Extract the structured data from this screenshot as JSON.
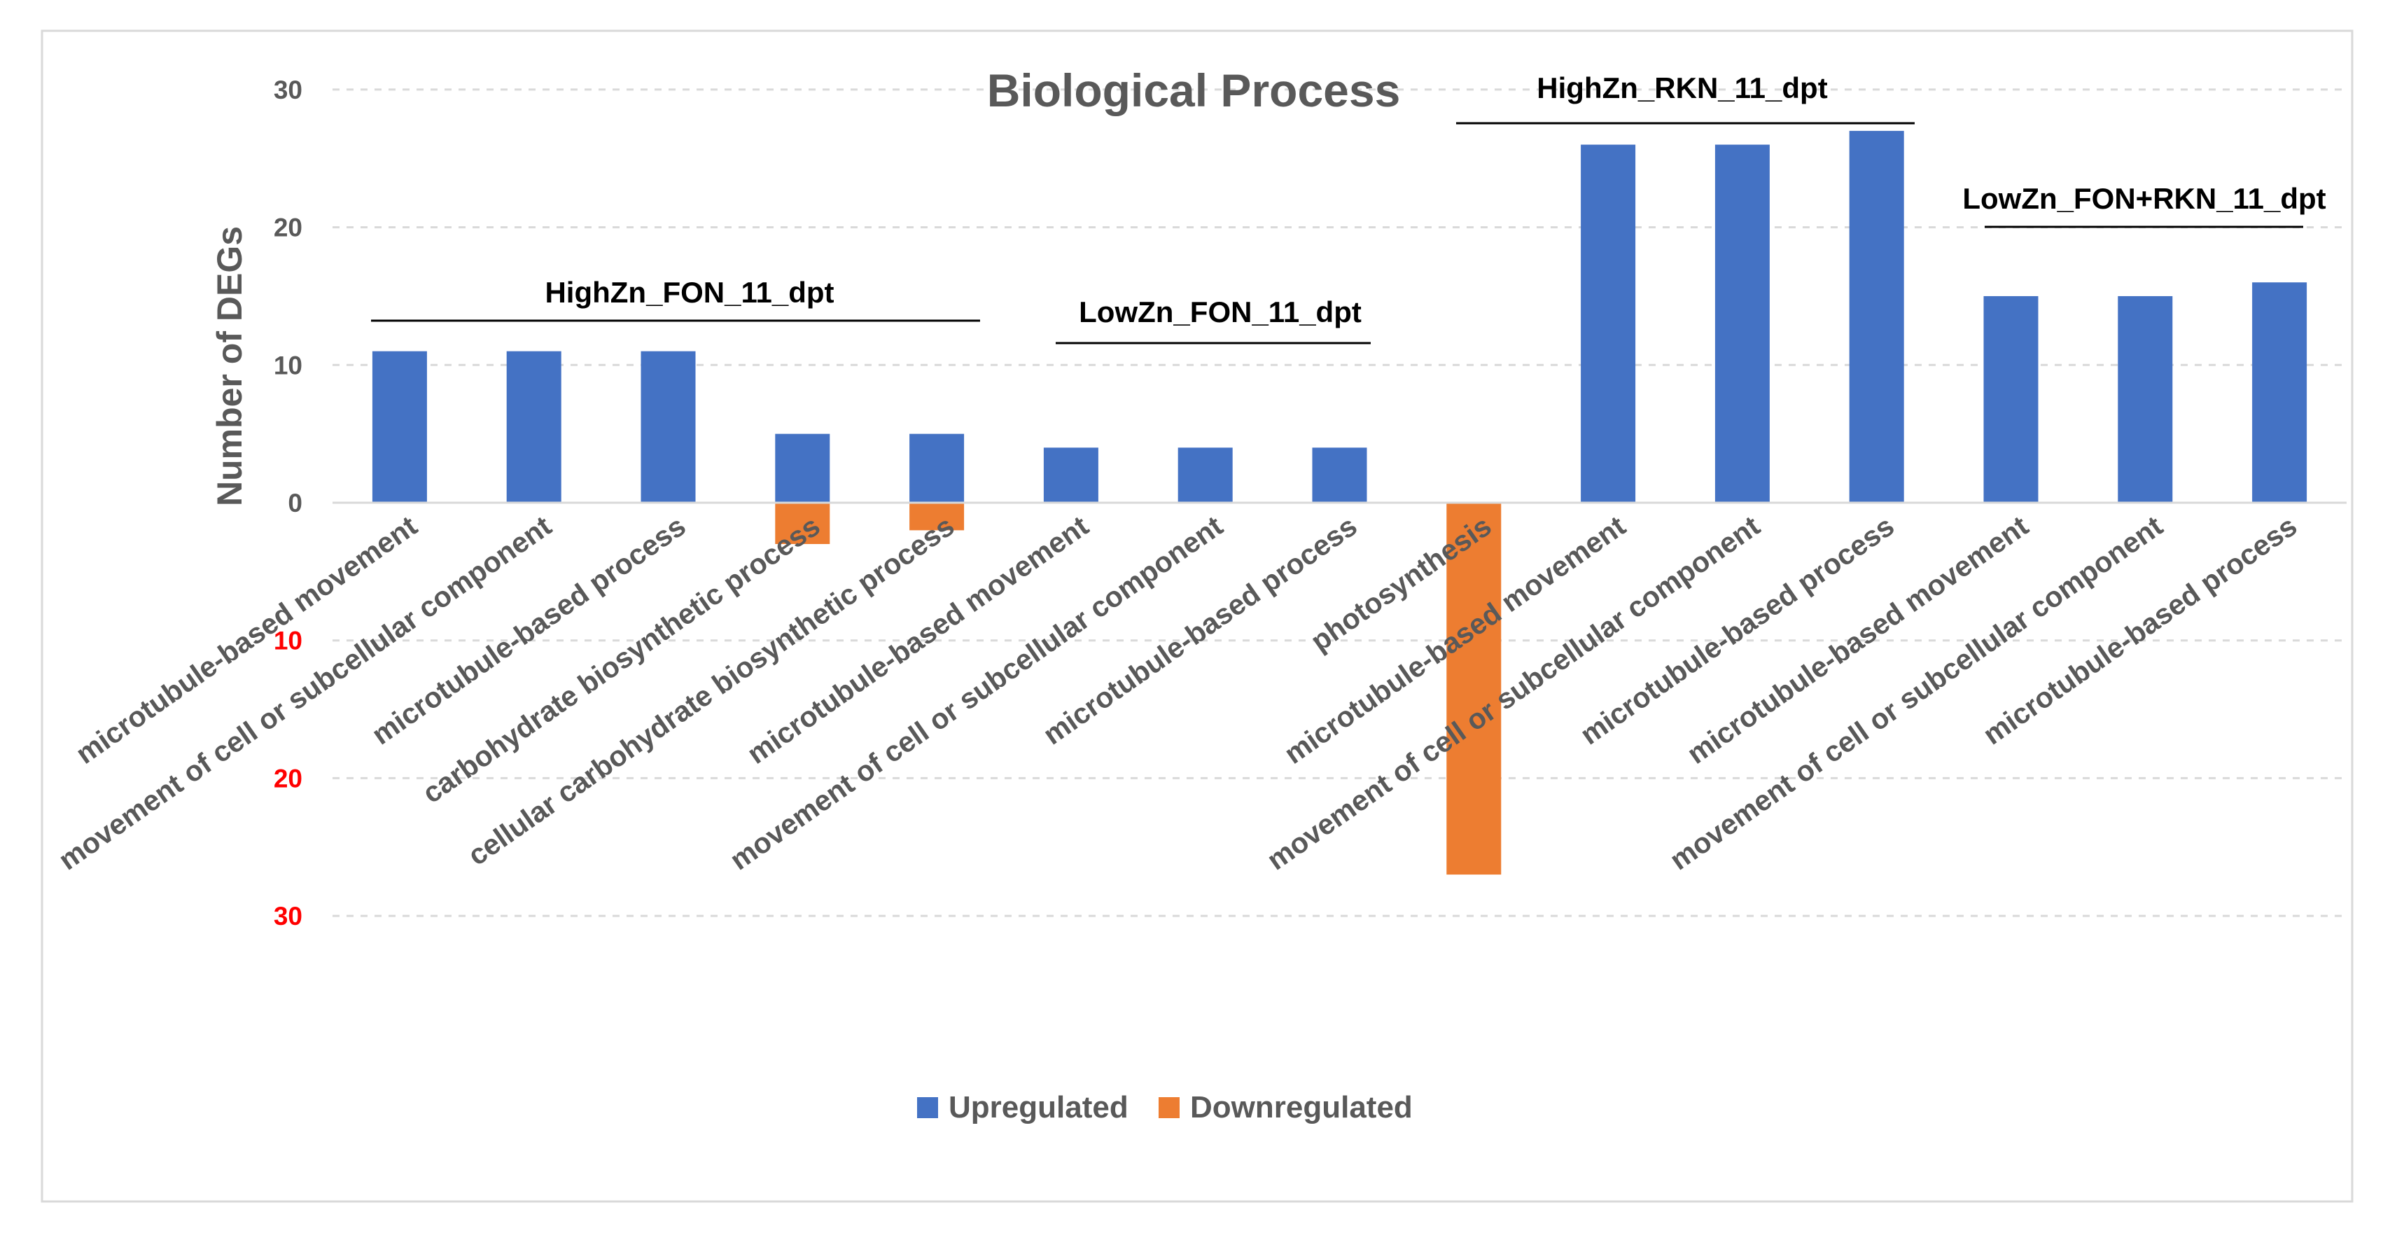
{
  "chart_data": {
    "type": "bar",
    "title": "Biological Process",
    "ylabel": "Number of DEGs",
    "ylim": [
      -30,
      30
    ],
    "yticks_positive": [
      "30",
      "20",
      "10",
      "0"
    ],
    "yticks_negative": [
      "10",
      "20",
      "30"
    ],
    "grid": true,
    "legend_position": "bottom",
    "categories": [
      "microtubule-based movement",
      "movement of cell or subcellular component",
      "microtubule-based process",
      "carbohydrate biosynthetic process",
      "cellular carbohydrate biosynthetic process",
      "microtubule-based movement",
      "movement of cell or subcellular component",
      "microtubule-based process",
      "photosynthesis",
      "microtubule-based movement",
      "movement of cell or subcellular component",
      "microtubule-based process",
      "microtubule-based movement",
      "movement of cell or subcellular component",
      "microtubule-based process"
    ],
    "series": [
      {
        "name": "Upregulated",
        "color": "#4472c4",
        "values": [
          11,
          11,
          11,
          5,
          5,
          4,
          4,
          4,
          0,
          26,
          26,
          27,
          15,
          15,
          16
        ]
      },
      {
        "name": "Downregulated",
        "color": "#ed7d31",
        "values": [
          0,
          0,
          0,
          -3,
          -2,
          0,
          0,
          0,
          -27,
          0,
          0,
          0,
          0,
          0,
          0
        ]
      }
    ],
    "groups": [
      {
        "label": "HighZn_FON_11_dpt",
        "start": 0,
        "end": 4
      },
      {
        "label": "LowZn_FON_11_dpt",
        "start": 5,
        "end": 7
      },
      {
        "label": "HighZn_RKN_11_dpt",
        "start": 8,
        "end": 11
      },
      {
        "label": "LowZn_FON+RKN_11_dpt",
        "start": 12,
        "end": 14
      }
    ]
  }
}
